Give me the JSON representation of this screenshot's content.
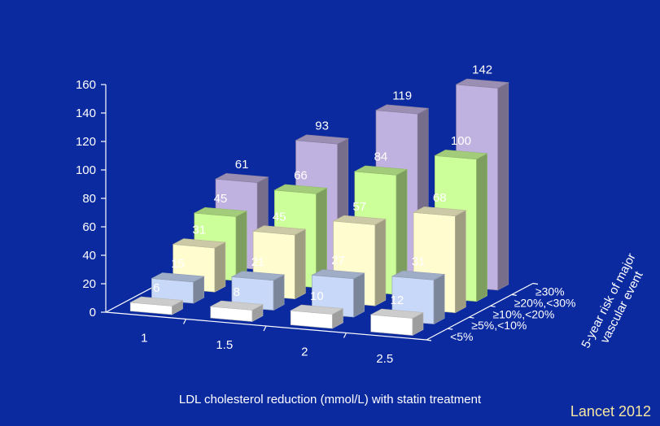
{
  "chart_data": {
    "type": "bar",
    "subtype": "3d-grouped",
    "categories": [
      "1",
      "1.5",
      "2",
      "2.5"
    ],
    "xlabel": "LDL cholesterol reduction (mmol/L) with statin treatment",
    "zlabel": "5-year risk of major vascular event",
    "ylim": [
      0,
      160
    ],
    "yticks": [
      0,
      20,
      40,
      60,
      80,
      100,
      120,
      140,
      160
    ],
    "series": [
      {
        "name": "<5%",
        "color": "#ffffff",
        "values": [
          6,
          8,
          10,
          12
        ]
      },
      {
        "name": "≥5%,<10%",
        "color": "#c8d8f8",
        "values": [
          15,
          21,
          27,
          31
        ]
      },
      {
        "name": "≥10%,<20%",
        "color": "#fffcd0",
        "values": [
          31,
          45,
          57,
          68
        ]
      },
      {
        "name": "≥20%,<30%",
        "color": "#ccff99",
        "values": [
          45,
          66,
          84,
          100
        ]
      },
      {
        "name": "≥30%",
        "color": "#c0b2e0",
        "values": [
          61,
          93,
          119,
          142
        ]
      }
    ],
    "grid": false,
    "legend": "none"
  },
  "source": "Lancet 2012"
}
